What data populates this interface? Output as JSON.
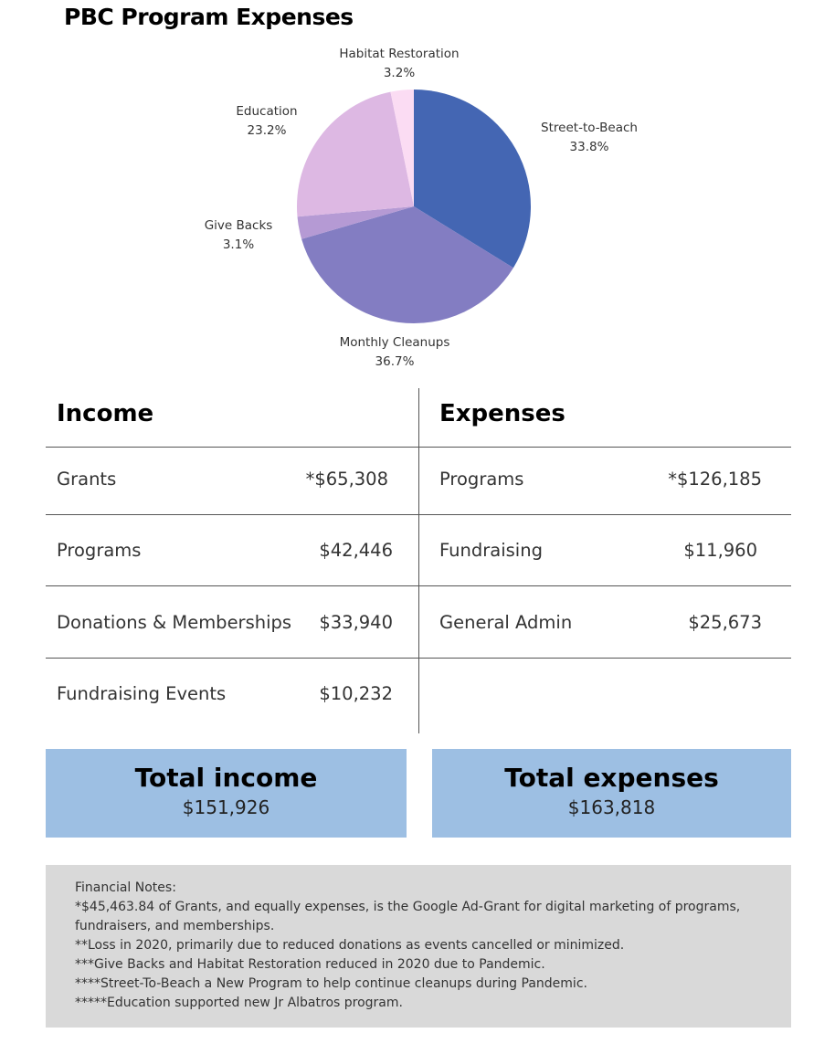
{
  "title": "PBC Program Expenses",
  "chart_data": {
    "type": "pie",
    "slices": [
      {
        "label": "Street-to-Beach",
        "value": 33.8,
        "display": "33.8%",
        "color": "#4466b3"
      },
      {
        "label": "Monthly Cleanups",
        "value": 36.7,
        "display": "36.7%",
        "color": "#837dc2"
      },
      {
        "label": "Give Backs",
        "value": 3.1,
        "display": "3.1%",
        "color": "#b59ad4"
      },
      {
        "label": "Education",
        "value": 23.2,
        "display": "23.2%",
        "color": "#ddb8e3"
      },
      {
        "label": "Habitat Restoration",
        "value": 3.2,
        "display": "3.2%",
        "color": "#fbdcf3"
      }
    ]
  },
  "income": {
    "header": "Income",
    "rows": [
      {
        "label": "Grants",
        "value": "*$65,308"
      },
      {
        "label": "Programs",
        "value": "$42,446"
      },
      {
        "label": "Donations & Memberships",
        "value": "$33,940"
      },
      {
        "label": "Fundraising Events",
        "value": "$10,232"
      }
    ]
  },
  "expenses": {
    "header": "Expenses",
    "rows": [
      {
        "label": "Programs",
        "value": "*$126,185"
      },
      {
        "label": "Fundraising",
        "value": "$11,960"
      },
      {
        "label": "General Admin",
        "value": "$25,673"
      }
    ]
  },
  "totals": {
    "income_title": "Total income",
    "income_value": "$151,926",
    "expenses_title": "Total expenses",
    "expenses_value": "$163,818",
    "box_color": "#9dbfe3"
  },
  "notes": {
    "heading": "Financial Notes:",
    "lines": [
      "*$45,463.84 of Grants, and equally expenses, is the Google Ad-Grant for digital marketing of programs, fundraisers, and memberships.",
      "**Loss in 2020, primarily due to reduced donations as events cancelled or minimized.",
      "***Give Backs and Habitat Restoration reduced in 2020 due to Pandemic.",
      "****Street-To-Beach a New Program to help continue cleanups during Pandemic.",
      "*****Education supported new Jr Albatros program."
    ]
  }
}
